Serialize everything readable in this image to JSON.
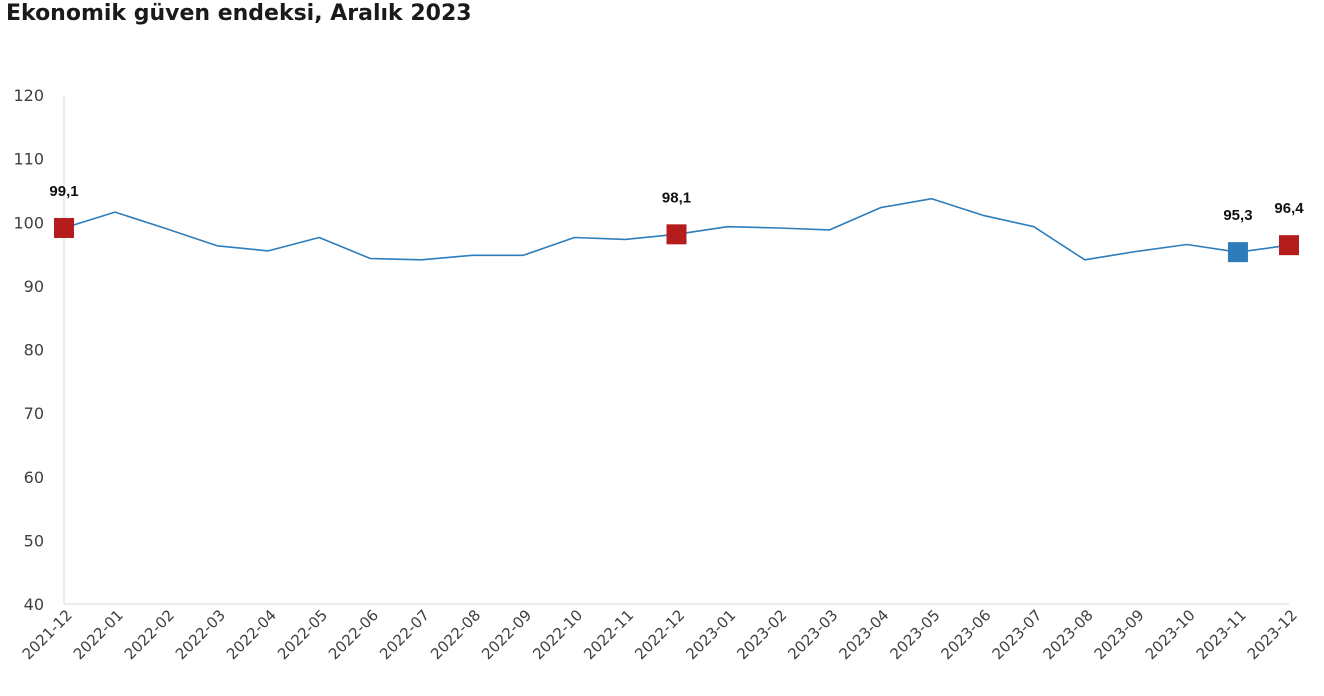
{
  "title": "Ekonomik güven endeksi, Aralık 2023",
  "chart_data": {
    "type": "line",
    "title": "Ekonomik güven endeksi, Aralık 2023",
    "xlabel": "",
    "ylabel": "",
    "ylim": [
      40,
      120
    ],
    "yticks": [
      40,
      50,
      60,
      70,
      80,
      90,
      100,
      110,
      120
    ],
    "grid": false,
    "categories": [
      "2021-12",
      "2022-01",
      "2022-02",
      "2022-03",
      "2022-04",
      "2022-05",
      "2022-06",
      "2022-07",
      "2022-08",
      "2022-09",
      "2022-10",
      "2022-11",
      "2022-12",
      "2023-01",
      "2023-02",
      "2023-03",
      "2023-04",
      "2023-05",
      "2023-06",
      "2023-07",
      "2023-08",
      "2023-09",
      "2023-10",
      "2023-11",
      "2023-12"
    ],
    "series": [
      {
        "values": [
          99.1,
          101.6,
          99.0,
          96.3,
          95.5,
          97.6,
          94.3,
          94.1,
          94.8,
          94.8,
          97.6,
          97.3,
          98.1,
          99.3,
          99.1,
          98.8,
          102.3,
          103.7,
          101.1,
          99.3,
          94.1,
          95.4,
          96.5,
          95.3,
          96.4
        ],
        "color": "#2e7dbb"
      }
    ],
    "highlights": [
      {
        "category": "2021-12",
        "value": 99.1,
        "label": "99,1",
        "color": "#b51c1c"
      },
      {
        "category": "2022-12",
        "value": 98.1,
        "label": "98,1",
        "color": "#b51c1c"
      },
      {
        "category": "2023-11",
        "value": 95.3,
        "label": "95,3",
        "color": "#2e7dbb"
      },
      {
        "category": "2023-12",
        "value": 96.4,
        "label": "96,4",
        "color": "#b51c1c"
      }
    ]
  }
}
